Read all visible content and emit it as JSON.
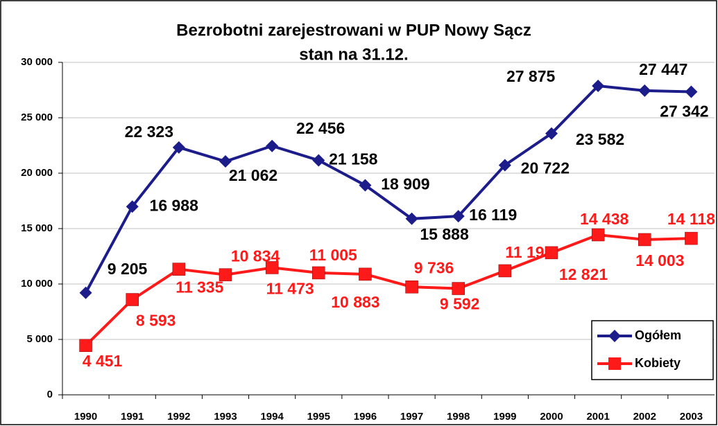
{
  "chart_data": {
    "type": "line",
    "title": "Bezrobotni zarejestrowani w PUP Nowy Sącz",
    "subtitle": "stan na 31.12.",
    "categories": [
      "1990",
      "1991",
      "1992",
      "1993",
      "1994",
      "1995",
      "1996",
      "1997",
      "1998",
      "1999",
      "2000",
      "2001",
      "2002",
      "2003"
    ],
    "series": [
      {
        "name": "Ogółem",
        "color": "#1c1c8a",
        "marker": "diamond",
        "values": [
          9205,
          16988,
          22323,
          21062,
          22456,
          21158,
          18909,
          15888,
          16119,
          20722,
          23582,
          27875,
          27447,
          27342
        ],
        "value_labels": [
          "9 205",
          "16 988",
          "22 323",
          "21 062",
          "22 456",
          "21 158",
          "18 909",
          "15 888",
          "16 119",
          "20 722",
          "23 582",
          "27 875",
          "27 447",
          "27 342"
        ]
      },
      {
        "name": "Kobiety",
        "color": "#ff1a1a",
        "marker": "square",
        "values": [
          4451,
          8593,
          11335,
          10834,
          11473,
          11005,
          10883,
          9736,
          9592,
          11191,
          12821,
          14438,
          14003,
          14118
        ],
        "value_labels": [
          "4 451",
          "8 593",
          "11 335",
          "10 834",
          "11 473",
          "11 005",
          "10 883",
          "9 736",
          "9 592",
          "11 191",
          "12 821",
          "14 438",
          "14 003",
          "14 118"
        ]
      }
    ],
    "ylim": [
      0,
      30000
    ],
    "yticks": [
      0,
      {
        "value": 5000,
        "label": "5 000"
      },
      {
        "value": 10000,
        "label": "10 000"
      },
      {
        "value": 15000,
        "label": "15 000"
      },
      {
        "value": 20000,
        "label": "20 000"
      },
      {
        "value": 25000,
        "label": "25 000"
      },
      {
        "value": 30000,
        "label": "30 000"
      }
    ],
    "grid": true,
    "legend": "lower right"
  }
}
